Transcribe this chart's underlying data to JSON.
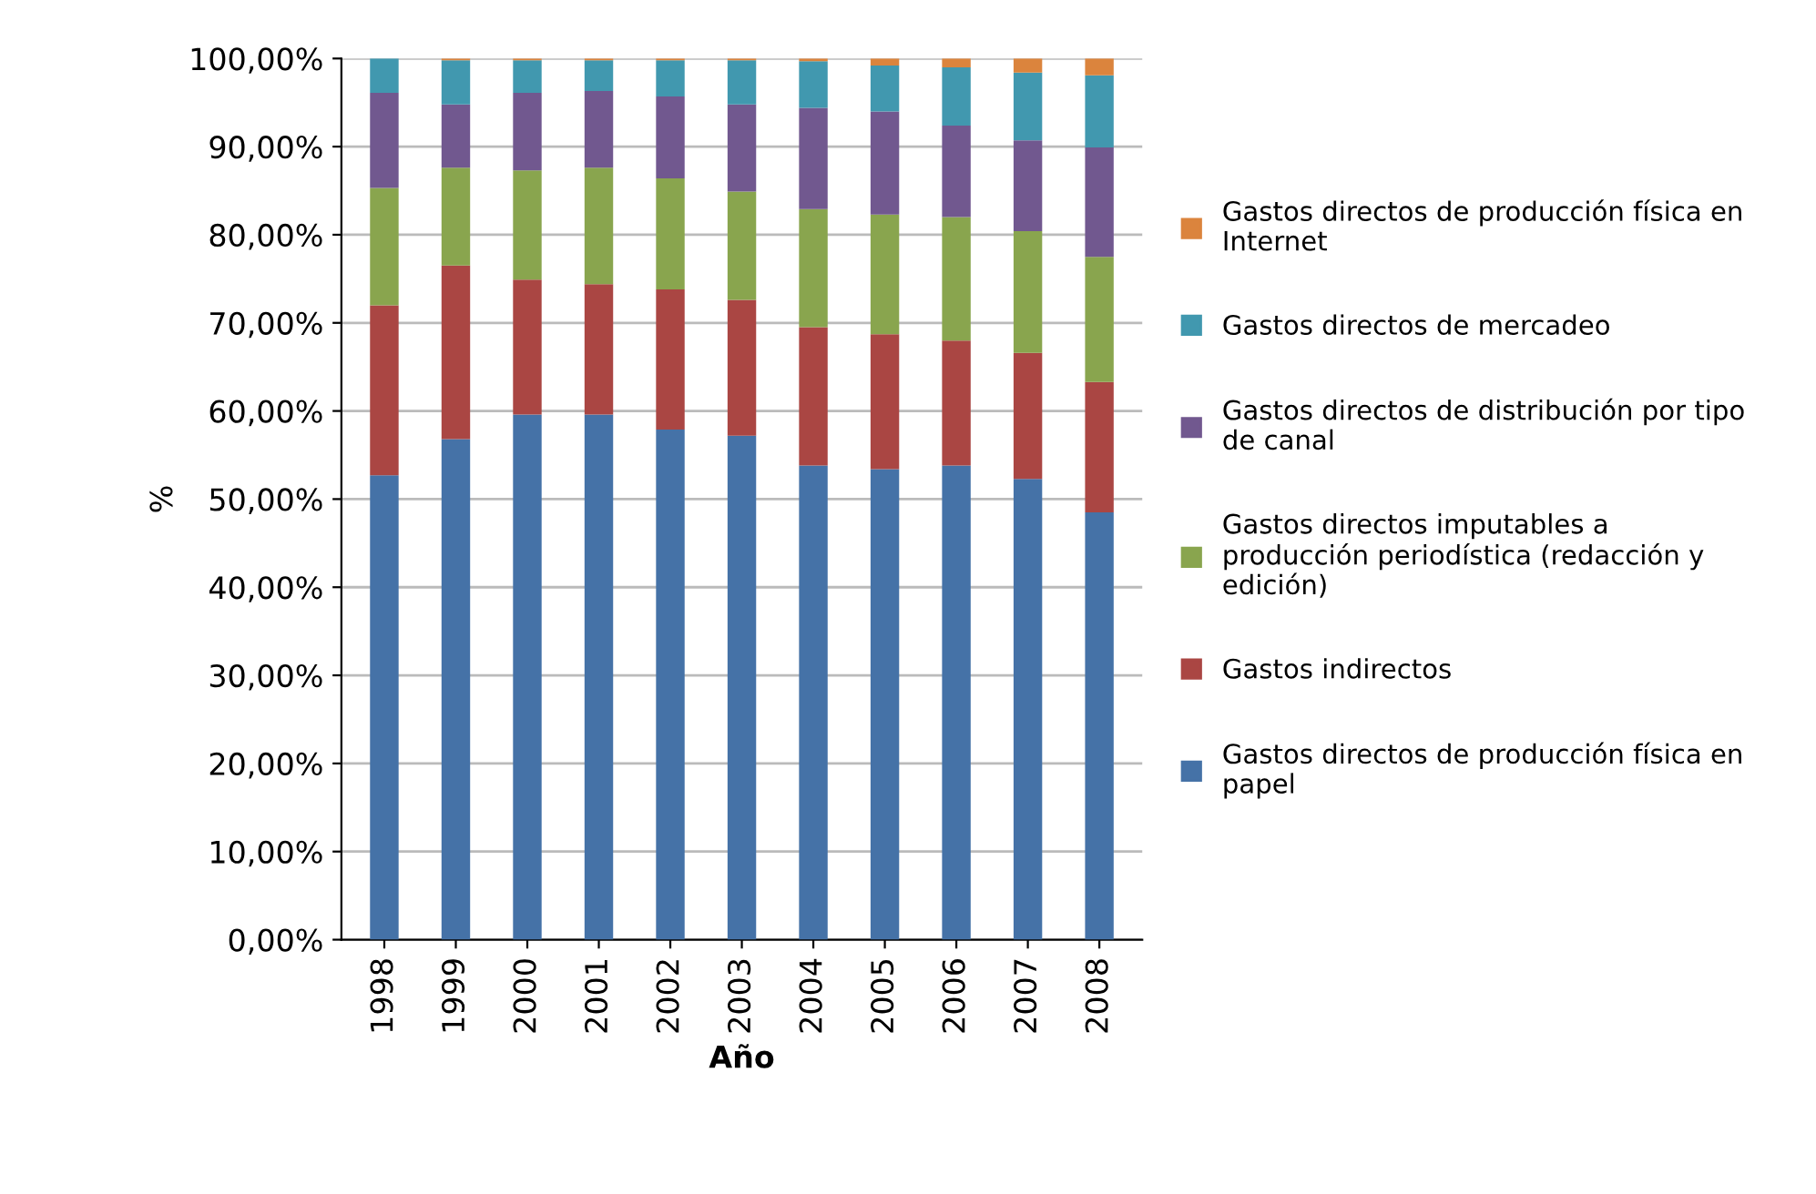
{
  "chart_data": {
    "type": "bar",
    "stacked": true,
    "xlabel": "Año",
    "ylabel": "%",
    "categories": [
      "1998",
      "1999",
      "2000",
      "2001",
      "2002",
      "2003",
      "2004",
      "2005",
      "2006",
      "2007",
      "2008"
    ],
    "series": [
      {
        "name": "Gastos directos de producción física en\npapel",
        "color": "#4572a7",
        "values": [
          52.7,
          56.8,
          59.6,
          59.6,
          57.9,
          57.2,
          53.8,
          53.4,
          53.8,
          52.3,
          48.5
        ]
      },
      {
        "name": "Gastos indirectos",
        "color": "#aa4643",
        "values": [
          19.3,
          19.7,
          15.3,
          14.8,
          15.9,
          15.4,
          15.7,
          15.3,
          14.2,
          14.3,
          14.8
        ]
      },
      {
        "name": "Gastos directos imputables a\nproducción periodística (redacción y\nedición)",
        "color": "#89a54e",
        "values": [
          13.3,
          11.1,
          12.4,
          13.2,
          12.6,
          12.3,
          13.4,
          13.6,
          14.0,
          13.8,
          14.2
        ]
      },
      {
        "name": "Gastos directos de distribución por tipo\nde canal",
        "color": "#71588f",
        "values": [
          10.8,
          7.2,
          8.8,
          8.7,
          9.3,
          9.9,
          11.5,
          11.7,
          10.4,
          10.3,
          12.4
        ]
      },
      {
        "name": "Gastos directos de mercadeo",
        "color": "#4198af",
        "values": [
          3.9,
          5.0,
          3.7,
          3.5,
          4.1,
          5.0,
          5.3,
          5.2,
          6.6,
          7.7,
          8.2
        ]
      },
      {
        "name": "Gastos directos de producción física en\nInternet",
        "color": "#db843d",
        "values": [
          0.0,
          0.2,
          0.2,
          0.2,
          0.2,
          0.2,
          0.3,
          0.8,
          1.0,
          1.6,
          1.9
        ]
      }
    ],
    "ylim": [
      0,
      100
    ],
    "yticks": [
      {
        "value": 0,
        "label": "0,00%"
      },
      {
        "value": 10,
        "label": "10,00%"
      },
      {
        "value": 20,
        "label": "20,00%"
      },
      {
        "value": 30,
        "label": "30,00%"
      },
      {
        "value": 40,
        "label": "40,00%"
      },
      {
        "value": 50,
        "label": "50,00%"
      },
      {
        "value": 60,
        "label": "60,00%"
      },
      {
        "value": 70,
        "label": "70,00%"
      },
      {
        "value": 80,
        "label": "80,00%"
      },
      {
        "value": 90,
        "label": "90,00%"
      },
      {
        "value": 100,
        "label": "100,00%"
      }
    ],
    "grid": "y",
    "legend": "right"
  }
}
